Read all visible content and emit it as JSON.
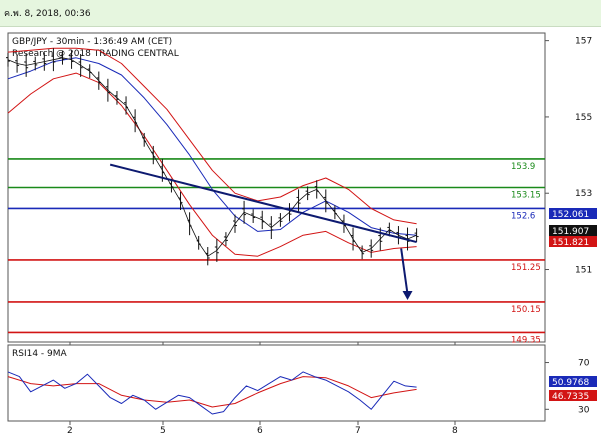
{
  "header": {
    "date": "ค.พ. 8, 2018, 00:36"
  },
  "chart_data": [
    {
      "type": "line",
      "title": "GBP/JPY - 30min - 1:36:49 AM (CET)",
      "subtitle": "Research @ 2018 TRADING CENTRAL",
      "x_ticks": [
        "2",
        "5",
        "6",
        "7",
        "8"
      ],
      "y_ticks": [
        157,
        155,
        153,
        151
      ],
      "ylim": [
        149.1,
        157.2
      ],
      "grid": false,
      "support_resistance": [
        {
          "label": "153.9",
          "value": 153.9,
          "color": "#1a8a1a"
        },
        {
          "label": "153.15",
          "value": 153.15,
          "color": "#1a8a1a"
        },
        {
          "label": "152.6",
          "value": 152.6,
          "color": "#1a2ab8"
        },
        {
          "label": "151.25",
          "value": 151.25,
          "color": "#d21414"
        },
        {
          "label": "150.15",
          "value": 150.15,
          "color": "#d21414"
        },
        {
          "label": "149.35",
          "value": 149.35,
          "color": "#d21414"
        }
      ],
      "price_badges": [
        {
          "label": "152.061",
          "value": 152.061,
          "color": "#1a2ab8"
        },
        {
          "label": "151.907",
          "value": 151.907,
          "color": "#111111"
        },
        {
          "label": "151.821",
          "value": 151.821,
          "color": "#d21414"
        }
      ],
      "trendline": {
        "from": [
          0.225,
          153.75
        ],
        "to": [
          0.9,
          151.72
        ]
      },
      "forecast_arrow": {
        "from": [
          0.866,
          151.55
        ],
        "to": [
          0.88,
          150.2
        ]
      },
      "price_series": {
        "x": [
          0.0,
          0.02,
          0.04,
          0.06,
          0.08,
          0.1,
          0.12,
          0.14,
          0.16,
          0.18,
          0.2,
          0.22,
          0.24,
          0.26,
          0.28,
          0.3,
          0.32,
          0.34,
          0.36,
          0.38,
          0.4,
          0.42,
          0.44,
          0.46,
          0.48,
          0.5,
          0.52,
          0.54,
          0.56,
          0.58,
          0.6,
          0.62,
          0.64,
          0.66,
          0.68,
          0.7,
          0.72,
          0.74,
          0.76,
          0.78,
          0.8,
          0.82,
          0.84,
          0.86,
          0.88,
          0.9
        ],
        "y": [
          156.5,
          156.4,
          156.35,
          156.4,
          156.45,
          156.5,
          156.55,
          156.5,
          156.35,
          156.2,
          155.95,
          155.7,
          155.5,
          155.3,
          154.9,
          154.4,
          154.0,
          153.6,
          153.2,
          152.8,
          152.2,
          151.7,
          151.35,
          151.5,
          151.8,
          152.2,
          152.5,
          152.4,
          152.3,
          152.1,
          152.3,
          152.5,
          152.8,
          153.0,
          153.1,
          152.8,
          152.5,
          152.2,
          151.8,
          151.45,
          151.55,
          151.8,
          152.05,
          151.9,
          151.8,
          151.9
        ]
      },
      "moving_average": {
        "x": [
          0.0,
          0.05,
          0.1,
          0.15,
          0.2,
          0.25,
          0.3,
          0.35,
          0.4,
          0.45,
          0.5,
          0.55,
          0.6,
          0.65,
          0.7,
          0.75,
          0.8,
          0.85,
          0.9
        ],
        "y": [
          156.0,
          156.2,
          156.45,
          156.55,
          156.4,
          156.1,
          155.5,
          154.8,
          154.0,
          153.1,
          152.4,
          152.0,
          152.05,
          152.5,
          152.8,
          152.5,
          152.1,
          151.95,
          151.9
        ]
      },
      "bollinger_upper": {
        "x": [
          0.0,
          0.05,
          0.1,
          0.15,
          0.2,
          0.25,
          0.3,
          0.35,
          0.4,
          0.45,
          0.5,
          0.55,
          0.6,
          0.65,
          0.7,
          0.75,
          0.8,
          0.85,
          0.9
        ],
        "y": [
          156.7,
          156.75,
          156.8,
          156.8,
          156.75,
          156.4,
          155.8,
          155.2,
          154.4,
          153.6,
          153.0,
          152.8,
          152.9,
          153.2,
          153.4,
          153.1,
          152.6,
          152.3,
          152.2
        ]
      },
      "bollinger_lower": {
        "x": [
          0.0,
          0.05,
          0.1,
          0.15,
          0.2,
          0.25,
          0.3,
          0.35,
          0.4,
          0.45,
          0.5,
          0.55,
          0.6,
          0.65,
          0.7,
          0.75,
          0.8,
          0.85,
          0.9
        ],
        "y": [
          155.1,
          155.6,
          156.0,
          156.15,
          155.9,
          155.3,
          154.5,
          153.6,
          152.7,
          151.9,
          151.4,
          151.35,
          151.6,
          151.9,
          152.0,
          151.7,
          151.45,
          151.55,
          151.6
        ]
      }
    },
    {
      "type": "line",
      "title": "RSI14 - 9MA",
      "y_ticks": [
        70,
        30
      ],
      "ylim": [
        20,
        85
      ],
      "value_badges": [
        {
          "label": "50.9768",
          "value": 50.9768,
          "color": "#1a2ab8"
        },
        {
          "label": "46.7335",
          "value": 46.7335,
          "color": "#d21414"
        }
      ],
      "rsi": {
        "x": [
          0.0,
          0.025,
          0.05,
          0.075,
          0.1,
          0.125,
          0.15,
          0.175,
          0.2,
          0.225,
          0.25,
          0.275,
          0.3,
          0.325,
          0.35,
          0.375,
          0.4,
          0.425,
          0.45,
          0.475,
          0.5,
          0.525,
          0.55,
          0.575,
          0.6,
          0.625,
          0.65,
          0.675,
          0.7,
          0.725,
          0.75,
          0.775,
          0.8,
          0.825,
          0.85,
          0.875,
          0.9
        ],
        "y": [
          62,
          58,
          45,
          50,
          55,
          48,
          52,
          60,
          50,
          40,
          35,
          42,
          38,
          30,
          36,
          42,
          40,
          33,
          26,
          28,
          40,
          50,
          46,
          52,
          58,
          55,
          62,
          58,
          55,
          50,
          45,
          38,
          30,
          42,
          54,
          50,
          49
        ]
      },
      "rsi_ma": {
        "x": [
          0.0,
          0.05,
          0.1,
          0.15,
          0.2,
          0.25,
          0.3,
          0.35,
          0.4,
          0.45,
          0.5,
          0.55,
          0.6,
          0.65,
          0.7,
          0.75,
          0.8,
          0.85,
          0.9
        ],
        "y": [
          58,
          52,
          50,
          52,
          52,
          42,
          38,
          36,
          38,
          32,
          35,
          44,
          52,
          58,
          57,
          50,
          40,
          44,
          47
        ]
      }
    }
  ]
}
